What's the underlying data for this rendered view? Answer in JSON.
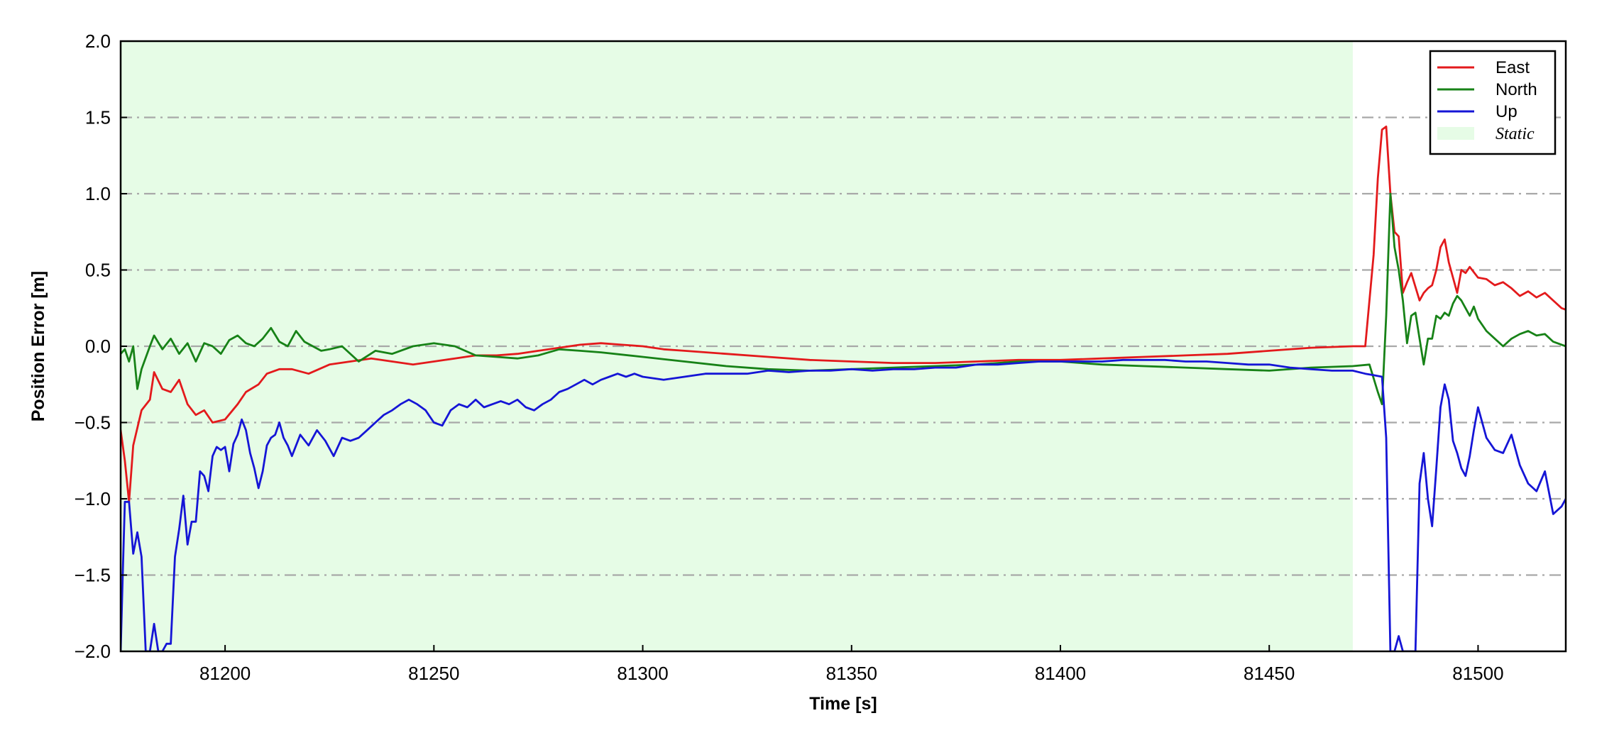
{
  "chart_data": {
    "type": "line",
    "xlabel": "Time [s]",
    "ylabel": "Position Error [m]",
    "xlim": [
      81175,
      81521
    ],
    "ylim": [
      -2.0,
      2.0
    ],
    "xticks": [
      81200,
      81250,
      81300,
      81350,
      81400,
      81450,
      81500
    ],
    "xtick_labels": [
      "81200",
      "81250",
      "81300",
      "81350",
      "81400",
      "81450",
      "81500"
    ],
    "yticks": [
      2.0,
      1.5,
      1.0,
      0.5,
      0.0,
      -0.5,
      -1.0,
      -1.5,
      -2.0
    ],
    "ytick_labels": [
      "2.0",
      "1.5",
      "1.0",
      "0.5",
      "0.0",
      "−0.5",
      "−1.0",
      "−1.5",
      "−2.0"
    ],
    "grid": "horizontal dash-dot",
    "legend_position": "top-right",
    "shaded_region": {
      "label": "Static",
      "x_start": 81175,
      "x_end": 81470,
      "color": "#e6fce6"
    },
    "series": [
      {
        "name": "East",
        "color": "#e31a1c",
        "x": [
          81175,
          81176,
          81177,
          81178,
          81180,
          81182,
          81183,
          81185,
          81187,
          81189,
          81191,
          81193,
          81195,
          81197,
          81200,
          81203,
          81205,
          81208,
          81210,
          81213,
          81216,
          81220,
          81225,
          81230,
          81235,
          81240,
          81245,
          81250,
          81255,
          81260,
          81265,
          81270,
          81275,
          81280,
          81285,
          81290,
          81295,
          81300,
          81305,
          81310,
          81320,
          81330,
          81340,
          81350,
          81360,
          81370,
          81380,
          81390,
          81400,
          81410,
          81420,
          81430,
          81440,
          81450,
          81460,
          81470,
          81473,
          81475,
          81476,
          81477,
          81478,
          81479,
          81480,
          81481,
          81482,
          81483,
          81484,
          81486,
          81487,
          81488,
          81489,
          81490,
          81491,
          81492,
          81493,
          81494,
          81495,
          81496,
          81497,
          81498,
          81500,
          81502,
          81504,
          81506,
          81508,
          81510,
          81512,
          81514,
          81516,
          81518,
          81520,
          81521
        ],
        "values": [
          -0.55,
          -0.75,
          -1.02,
          -0.65,
          -0.42,
          -0.35,
          -0.17,
          -0.28,
          -0.3,
          -0.22,
          -0.38,
          -0.45,
          -0.42,
          -0.5,
          -0.48,
          -0.38,
          -0.3,
          -0.25,
          -0.18,
          -0.15,
          -0.15,
          -0.18,
          -0.12,
          -0.1,
          -0.08,
          -0.1,
          -0.12,
          -0.1,
          -0.08,
          -0.06,
          -0.06,
          -0.05,
          -0.03,
          -0.01,
          0.01,
          0.02,
          0.01,
          0.0,
          -0.02,
          -0.03,
          -0.05,
          -0.07,
          -0.09,
          -0.1,
          -0.11,
          -0.11,
          -0.1,
          -0.09,
          -0.09,
          -0.08,
          -0.07,
          -0.06,
          -0.05,
          -0.03,
          -0.01,
          0.0,
          0.0,
          0.6,
          1.1,
          1.42,
          1.44,
          1.0,
          0.75,
          0.72,
          0.35,
          0.42,
          0.48,
          0.3,
          0.35,
          0.38,
          0.4,
          0.5,
          0.65,
          0.7,
          0.55,
          0.45,
          0.35,
          0.5,
          0.48,
          0.52,
          0.45,
          0.44,
          0.4,
          0.42,
          0.38,
          0.33,
          0.36,
          0.32,
          0.35,
          0.3,
          0.25,
          0.24
        ]
      },
      {
        "name": "North",
        "color": "#178217",
        "x": [
          81175,
          81176,
          81177,
          81178,
          81179,
          81180,
          81182,
          81183,
          81185,
          81187,
          81189,
          81191,
          81193,
          81195,
          81197,
          81199,
          81201,
          81203,
          81205,
          81207,
          81209,
          81211,
          81213,
          81215,
          81217,
          81219,
          81221,
          81223,
          81225,
          81228,
          81232,
          81236,
          81240,
          81245,
          81250,
          81255,
          81260,
          81265,
          81270,
          81275,
          81280,
          81285,
          81290,
          81300,
          81310,
          81320,
          81330,
          81340,
          81350,
          81360,
          81370,
          81380,
          81390,
          81400,
          81410,
          81420,
          81430,
          81440,
          81450,
          81460,
          81470,
          81474,
          81476,
          81477,
          81478,
          81479,
          81480,
          81481,
          81482,
          81483,
          81484,
          81485,
          81486,
          81487,
          81488,
          81489,
          81490,
          81491,
          81492,
          81493,
          81494,
          81495,
          81496,
          81497,
          81498,
          81499,
          81500,
          81502,
          81504,
          81506,
          81508,
          81510,
          81512,
          81514,
          81516,
          81518,
          81521
        ],
        "values": [
          -0.05,
          -0.02,
          -0.1,
          0.0,
          -0.28,
          -0.15,
          0.0,
          0.07,
          -0.02,
          0.05,
          -0.05,
          0.02,
          -0.1,
          0.02,
          0.0,
          -0.05,
          0.04,
          0.07,
          0.02,
          0.0,
          0.05,
          0.12,
          0.03,
          0.0,
          0.1,
          0.03,
          0.0,
          -0.03,
          -0.02,
          0.0,
          -0.1,
          -0.03,
          -0.05,
          0.0,
          0.02,
          0.0,
          -0.06,
          -0.07,
          -0.08,
          -0.06,
          -0.02,
          -0.03,
          -0.04,
          -0.07,
          -0.1,
          -0.13,
          -0.15,
          -0.16,
          -0.15,
          -0.14,
          -0.13,
          -0.12,
          -0.1,
          -0.1,
          -0.12,
          -0.13,
          -0.14,
          -0.15,
          -0.16,
          -0.14,
          -0.13,
          -0.12,
          -0.3,
          -0.38,
          0.2,
          1.0,
          0.65,
          0.5,
          0.3,
          0.02,
          0.2,
          0.22,
          0.05,
          -0.12,
          0.05,
          0.05,
          0.2,
          0.18,
          0.22,
          0.2,
          0.28,
          0.33,
          0.3,
          0.25,
          0.2,
          0.26,
          0.18,
          0.1,
          0.05,
          0.0,
          0.05,
          0.08,
          0.1,
          0.07,
          0.08,
          0.03,
          0.0
        ]
      },
      {
        "name": "Up",
        "color": "#1515d6",
        "x": [
          81175,
          81175.5,
          81176,
          81177,
          81178,
          81179,
          81180,
          81181,
          81182,
          81183,
          81184,
          81185,
          81186,
          81187,
          81188,
          81189,
          81190,
          81191,
          81192,
          81193,
          81194,
          81195,
          81196,
          81197,
          81198,
          81199,
          81200,
          81201,
          81202,
          81203,
          81204,
          81205,
          81206,
          81207,
          81208,
          81209,
          81210,
          81211,
          81212,
          81213,
          81214,
          81215,
          81216,
          81218,
          81220,
          81222,
          81224,
          81226,
          81228,
          81230,
          81232,
          81234,
          81236,
          81238,
          81240,
          81242,
          81244,
          81246,
          81248,
          81250,
          81252,
          81254,
          81256,
          81258,
          81260,
          81262,
          81264,
          81266,
          81268,
          81270,
          81272,
          81274,
          81276,
          81278,
          81280,
          81282,
          81284,
          81286,
          81288,
          81290,
          81292,
          81294,
          81296,
          81298,
          81300,
          81305,
          81310,
          81315,
          81320,
          81325,
          81330,
          81335,
          81340,
          81345,
          81350,
          81355,
          81360,
          81365,
          81370,
          81375,
          81380,
          81385,
          81390,
          81395,
          81400,
          81405,
          81410,
          81415,
          81420,
          81425,
          81430,
          81435,
          81440,
          81445,
          81450,
          81455,
          81460,
          81465,
          81470,
          81473,
          81475,
          81477,
          81478,
          81479,
          81480,
          81481,
          81482,
          81483,
          81484,
          81485,
          81486,
          81487,
          81488,
          81489,
          81490,
          81491,
          81492,
          81493,
          81494,
          81495,
          81496,
          81497,
          81498,
          81499,
          81500,
          81502,
          81504,
          81506,
          81508,
          81510,
          81512,
          81514,
          81516,
          81518,
          81520,
          81521
        ],
        "values": [
          -2.0,
          -1.5,
          -1.02,
          -1.02,
          -1.36,
          -1.22,
          -1.38,
          -2.0,
          -2.0,
          -1.82,
          -2.0,
          -2.0,
          -1.95,
          -1.95,
          -1.38,
          -1.2,
          -0.98,
          -1.3,
          -1.15,
          -1.15,
          -0.82,
          -0.85,
          -0.95,
          -0.72,
          -0.66,
          -0.68,
          -0.66,
          -0.82,
          -0.64,
          -0.58,
          -0.48,
          -0.55,
          -0.7,
          -0.8,
          -0.93,
          -0.82,
          -0.65,
          -0.6,
          -0.58,
          -0.5,
          -0.6,
          -0.65,
          -0.72,
          -0.58,
          -0.65,
          -0.55,
          -0.62,
          -0.72,
          -0.6,
          -0.62,
          -0.6,
          -0.55,
          -0.5,
          -0.45,
          -0.42,
          -0.38,
          -0.35,
          -0.38,
          -0.42,
          -0.5,
          -0.52,
          -0.42,
          -0.38,
          -0.4,
          -0.35,
          -0.4,
          -0.38,
          -0.36,
          -0.38,
          -0.35,
          -0.4,
          -0.42,
          -0.38,
          -0.35,
          -0.3,
          -0.28,
          -0.25,
          -0.22,
          -0.25,
          -0.22,
          -0.2,
          -0.18,
          -0.2,
          -0.18,
          -0.2,
          -0.22,
          -0.2,
          -0.18,
          -0.18,
          -0.18,
          -0.16,
          -0.17,
          -0.16,
          -0.16,
          -0.15,
          -0.16,
          -0.15,
          -0.15,
          -0.14,
          -0.14,
          -0.12,
          -0.12,
          -0.11,
          -0.1,
          -0.1,
          -0.1,
          -0.1,
          -0.09,
          -0.09,
          -0.09,
          -0.1,
          -0.1,
          -0.11,
          -0.12,
          -0.12,
          -0.14,
          -0.15,
          -0.16,
          -0.16,
          -0.18,
          -0.19,
          -0.2,
          -0.6,
          -2.0,
          -2.0,
          -1.9,
          -2.0,
          -2.0,
          -2.0,
          -2.0,
          -0.9,
          -0.7,
          -1.0,
          -1.18,
          -0.8,
          -0.4,
          -0.25,
          -0.35,
          -0.62,
          -0.7,
          -0.8,
          -0.85,
          -0.72,
          -0.55,
          -0.4,
          -0.6,
          -0.68,
          -0.7,
          -0.58,
          -0.78,
          -0.9,
          -0.95,
          -0.82,
          -1.1,
          -1.05,
          -1.0
        ]
      }
    ]
  }
}
